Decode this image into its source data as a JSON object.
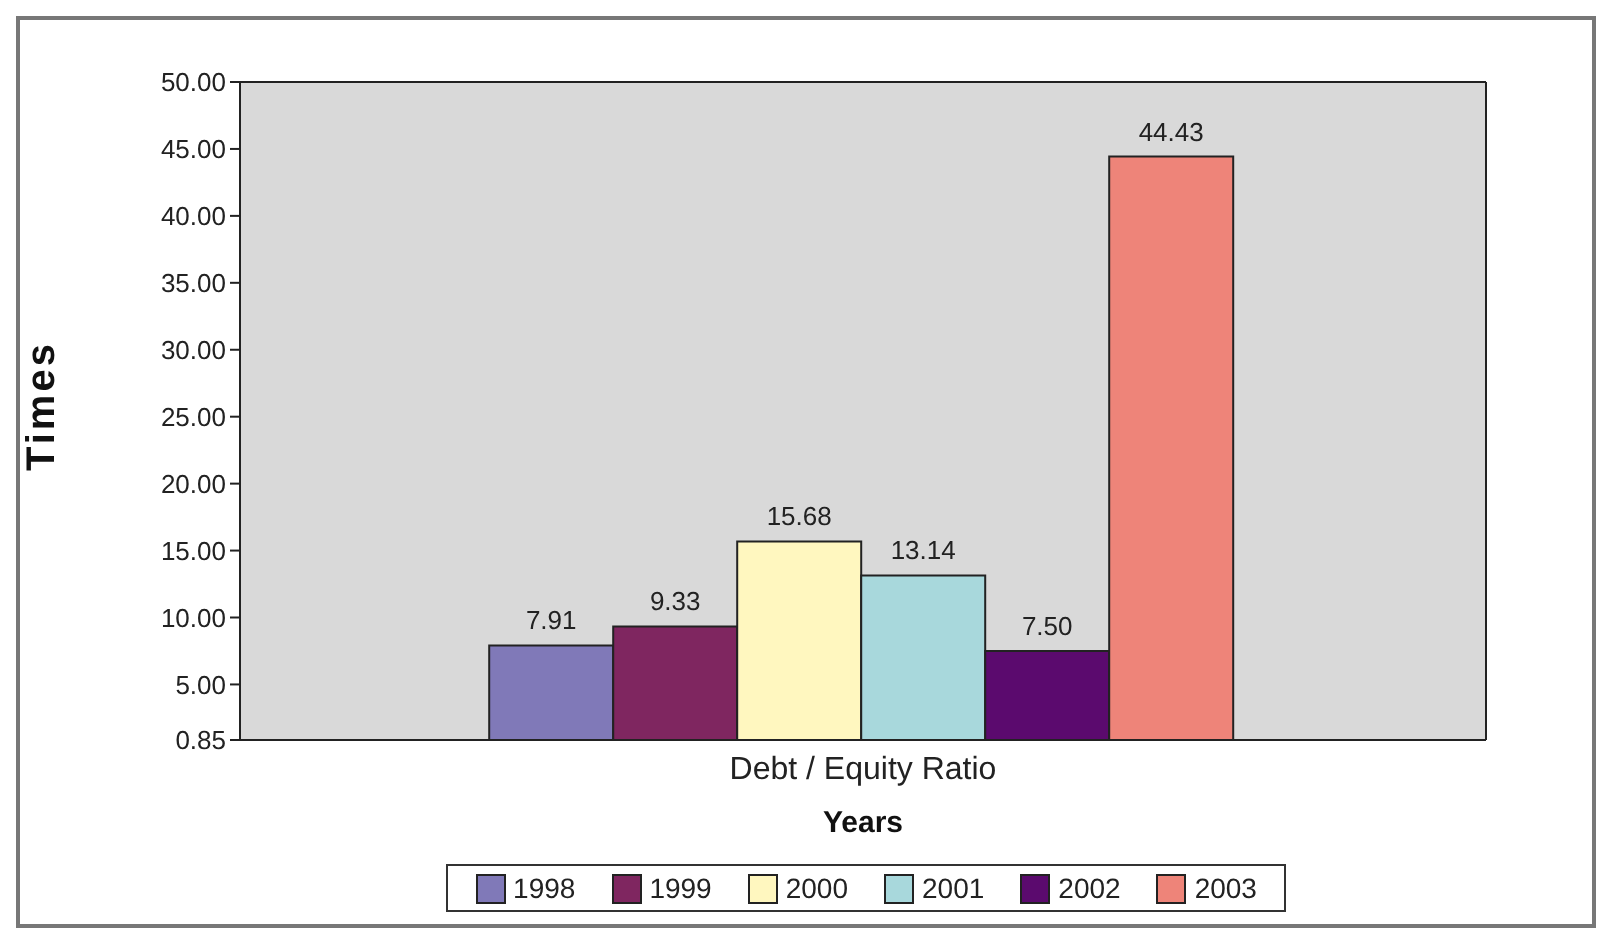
{
  "chart_data": {
    "type": "bar",
    "xlabel": "Years",
    "ylabel": "Times",
    "categories": [
      "Debt / Equity Ratio"
    ],
    "series": [
      {
        "name": "1998",
        "color": "#8079b8",
        "values": [
          7.91
        ],
        "value_labels": [
          "7.91"
        ]
      },
      {
        "name": "1999",
        "color": "#7f2660",
        "values": [
          9.33
        ],
        "value_labels": [
          "9.33"
        ]
      },
      {
        "name": "2000",
        "color": "#fff7bf",
        "values": [
          15.68
        ],
        "value_labels": [
          "15.68"
        ]
      },
      {
        "name": "2001",
        "color": "#a8d8dc",
        "values": [
          13.14
        ],
        "value_labels": [
          "13.14"
        ]
      },
      {
        "name": "2002",
        "color": "#5b0a6e",
        "values": [
          7.5
        ],
        "value_labels": [
          "7.50"
        ]
      },
      {
        "name": "2003",
        "color": "#ee8479",
        "values": [
          44.43
        ],
        "value_labels": [
          "44.43"
        ]
      }
    ],
    "ylim": [
      0.85,
      50
    ],
    "yticks": [
      {
        "value": 0.85,
        "label": "0.85"
      },
      {
        "value": 5,
        "label": "5.00"
      },
      {
        "value": 10,
        "label": "10.00"
      },
      {
        "value": 15,
        "label": "15.00"
      },
      {
        "value": 20,
        "label": "20.00"
      },
      {
        "value": 25,
        "label": "25.00"
      },
      {
        "value": 30,
        "label": "30.00"
      },
      {
        "value": 35,
        "label": "35.00"
      },
      {
        "value": 40,
        "label": "40.00"
      },
      {
        "value": 45,
        "label": "45.00"
      },
      {
        "value": 50,
        "label": "50.00"
      }
    ],
    "grid": false,
    "legend": "bottom"
  }
}
